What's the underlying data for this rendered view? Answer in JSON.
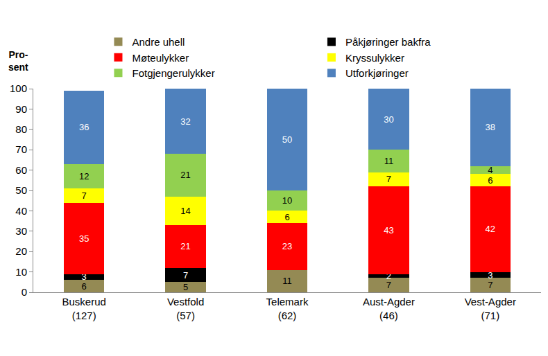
{
  "chart_data": {
    "type": "bar",
    "stacked": true,
    "data_labels": true,
    "grid": false,
    "legend": "top",
    "y_label": "Pro-\nsent",
    "categories": [
      "Buskerud\n(127)",
      "Vestfold\n(57)",
      "Telemark\n(62)",
      "Aust-Agder\n(46)",
      "Vest-Agder\n(71)"
    ],
    "ylim": [
      0,
      100
    ],
    "yticks": [
      0,
      10,
      20,
      30,
      40,
      50,
      60,
      70,
      80,
      90,
      100
    ],
    "series": [
      {
        "name": "Andre uhell",
        "color": "#948a54",
        "values": [
          6,
          5,
          11,
          7,
          7
        ]
      },
      {
        "name": "Påkjøringer bakfra",
        "color": "#000000",
        "values": [
          3,
          7,
          null,
          2,
          3
        ]
      },
      {
        "name": "Møteulykker",
        "color": "#ff0000",
        "values": [
          35,
          21,
          23,
          43,
          42
        ]
      },
      {
        "name": "Kryssulykker",
        "color": "#ffff00",
        "values": [
          7,
          14,
          6,
          7,
          6
        ]
      },
      {
        "name": "Fotgjengerulykker",
        "color": "#92d050",
        "values": [
          12,
          21,
          10,
          11,
          4
        ]
      },
      {
        "name": "Utforkjøringer",
        "color": "#4f81bd",
        "values": [
          36,
          32,
          50,
          30,
          38
        ]
      }
    ]
  }
}
